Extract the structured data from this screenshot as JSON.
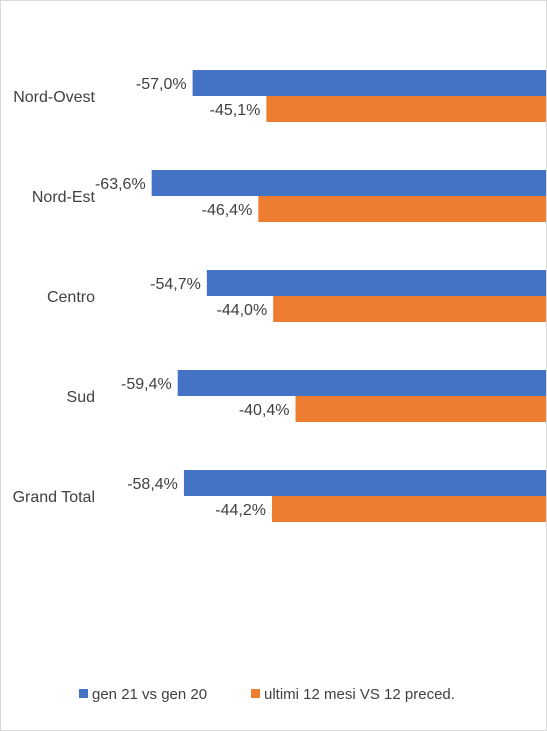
{
  "chart_data": {
    "type": "bar",
    "orientation": "horizontal",
    "categories": [
      "Nord-Ovest",
      "Nord-Est",
      "Centro",
      "Sud",
      "Grand Total"
    ],
    "series": [
      {
        "name": "gen 21 vs gen 20",
        "color": "#4472c4",
        "values": [
          -57.0,
          -63.6,
          -54.7,
          -59.4,
          -58.4
        ],
        "labels": [
          "-57,0%",
          "-63,6%",
          "-54,7%",
          "-59,4%",
          "-58,4%"
        ]
      },
      {
        "name": "ultimi 12 mesi VS 12 preced.",
        "color": "#ed7d31",
        "values": [
          -45.1,
          -46.4,
          -44.0,
          -40.4,
          -44.2
        ],
        "labels": [
          "-45,1%",
          "-46,4%",
          "-44,0%",
          "-40,4%",
          "-44,2%"
        ]
      }
    ],
    "value_unit": "%",
    "xlim": [
      -70,
      0
    ],
    "legend_position": "bottom",
    "grid": false
  }
}
